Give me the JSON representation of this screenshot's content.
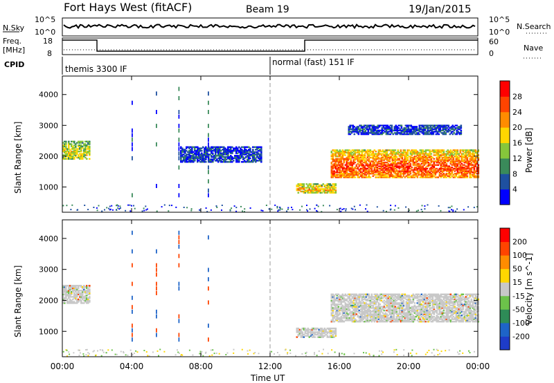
{
  "header": {
    "title": "Fort Hays West (fitACF)",
    "beam": "Beam 19",
    "date": "19/Jan/2015"
  },
  "status_panel": {
    "nsky_label": "N.Sky",
    "nsearch_label": "N.Search",
    "freq_label": "Freq.",
    "freq_unit": "[MHz]",
    "nave_label": "Nave",
    "cpid_label": "CPID",
    "noise_ticks": [
      "10^5",
      "10^0"
    ],
    "noise_right_ticks": [
      "10^5",
      "10^0"
    ],
    "freq_ticks": [
      "18",
      "8"
    ],
    "nave_ticks": [
      "60",
      "0"
    ],
    "cpid_segments": [
      {
        "label": "themis 3300 IF",
        "start_hour": 0
      },
      {
        "label": "normal (fast) 151 IF",
        "start_hour": 12
      }
    ]
  },
  "chart_data": [
    {
      "type": "heatmap",
      "name": "power",
      "ylabel": "Slant Range [km]",
      "xlabel": "",
      "colorbar_label": "Power [dB]",
      "colorbar_ticks": [
        "28",
        "24",
        "20",
        "16",
        "12",
        "8",
        "4"
      ],
      "colors": [
        "#0000ff",
        "#1e50a0",
        "#3a8a5a",
        "#86c63b",
        "#ffd700",
        "#ff8c00",
        "#ff4400",
        "#ff0000"
      ],
      "y_ticks": [
        1000,
        2000,
        3000,
        4000
      ],
      "ylim": [
        180,
        4600
      ],
      "xlim": [
        0,
        24
      ],
      "regions": [
        {
          "t0": 0.0,
          "t1": 1.6,
          "r0": 1900,
          "r1": 2500,
          "level": 0.45
        },
        {
          "t0": 6.8,
          "t1": 11.5,
          "r0": 1800,
          "r1": 2300,
          "level": 0.1
        },
        {
          "t0": 13.5,
          "t1": 15.8,
          "r0": 800,
          "r1": 1100,
          "level": 0.55
        },
        {
          "t0": 15.5,
          "t1": 24.0,
          "r0": 1300,
          "r1": 2200,
          "level": 0.75
        },
        {
          "t0": 16.5,
          "t1": 23.0,
          "r0": 2700,
          "r1": 3000,
          "level": 0.1
        }
      ]
    },
    {
      "type": "heatmap",
      "name": "velocity",
      "ylabel": "Slant Range [km]",
      "xlabel": "Time UT",
      "colorbar_label": "Velocity [m s^-1]",
      "colorbar_ticks": [
        "200",
        "100",
        "50",
        "15",
        "-15",
        "-50",
        "-100",
        "-200"
      ],
      "colors": [
        "#1e3cc8",
        "#1e64c8",
        "#2e8b57",
        "#6cc24a",
        "#c8c8c8",
        "#ffd700",
        "#ff8c00",
        "#ff4400",
        "#ff0000"
      ],
      "y_ticks": [
        1000,
        2000,
        3000,
        4000
      ],
      "ylim": [
        180,
        4600
      ],
      "xlim": [
        0,
        24
      ],
      "x_ticks": [
        "00:00",
        "04:00",
        "08:00",
        "12:00",
        "16:00",
        "20:00",
        "00:00"
      ],
      "regions": [
        {
          "t0": 0.0,
          "t1": 1.6,
          "r0": 1900,
          "r1": 2500,
          "level": 0.5
        },
        {
          "t0": 13.5,
          "t1": 15.8,
          "r0": 800,
          "r1": 1100,
          "level": 0.5
        },
        {
          "t0": 15.5,
          "t1": 24.0,
          "r0": 1300,
          "r1": 2200,
          "level": 0.5
        }
      ]
    }
  ]
}
